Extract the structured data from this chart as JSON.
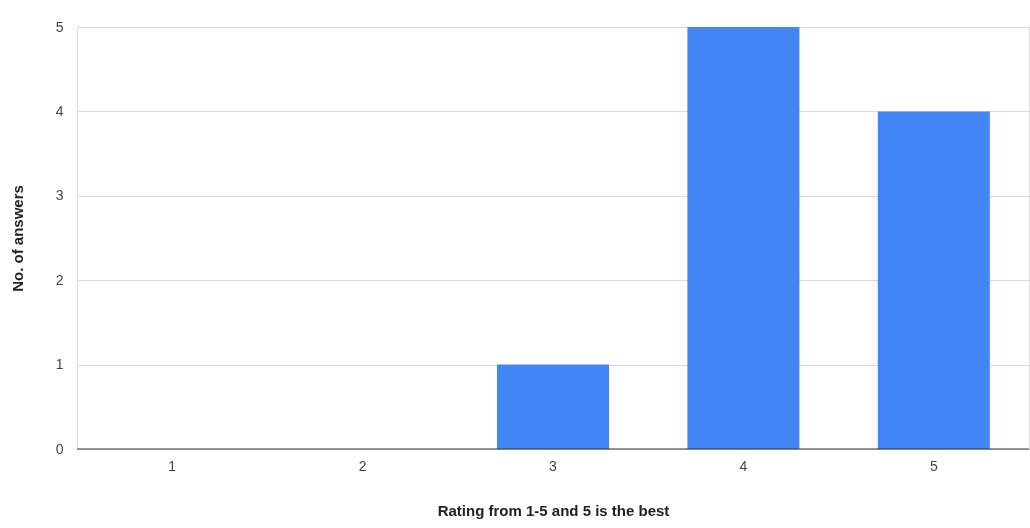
{
  "chart_data": {
    "type": "bar",
    "xlabel": "Rating from 1-5 and 5 is the best",
    "ylabel": "No. of answers",
    "categories": [
      "1",
      "2",
      "3",
      "4",
      "5"
    ],
    "values": [
      0,
      0,
      1,
      5,
      4
    ],
    "color": "#4285f4",
    "ylim": [
      0,
      5
    ],
    "yticks": [
      0,
      1,
      2,
      3,
      4,
      5
    ],
    "grid": "y"
  }
}
